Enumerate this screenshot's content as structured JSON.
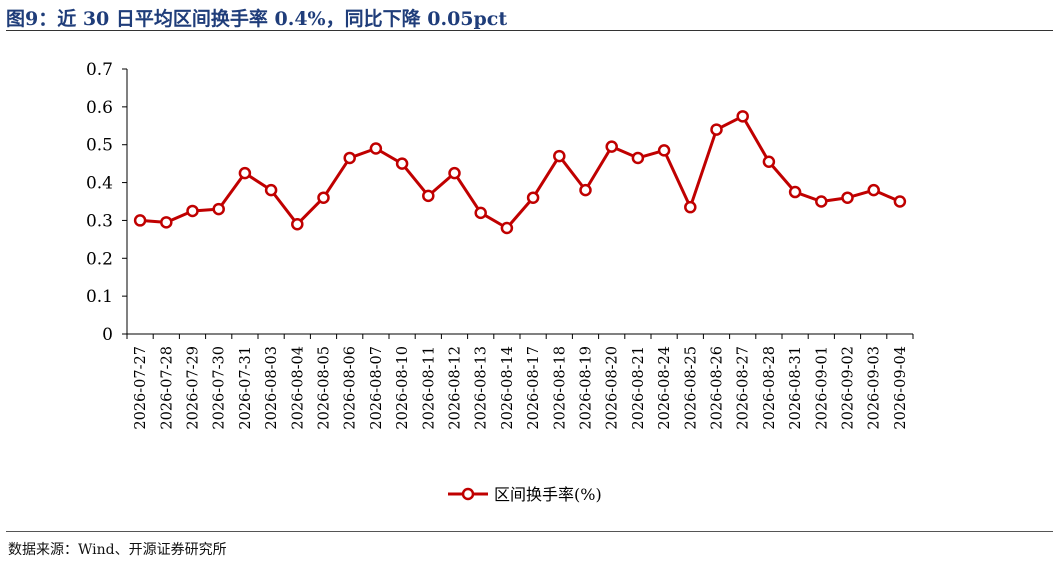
{
  "figure": {
    "title": "图9：近 30 日平均区间换手率 0.4%，同比下降 0.05pct",
    "source": "数据来源：Wind、开源证券研究所"
  },
  "colors": {
    "line": "#c00000",
    "title": "#1f3d7a",
    "axis": "#000000"
  },
  "chart_data": {
    "type": "line",
    "categories": [
      "2026-07-27",
      "2026-07-28",
      "2026-07-29",
      "2026-07-30",
      "2026-07-31",
      "2026-08-03",
      "2026-08-04",
      "2026-08-05",
      "2026-08-06",
      "2026-08-07",
      "2026-08-10",
      "2026-08-11",
      "2026-08-12",
      "2026-08-13",
      "2026-08-14",
      "2026-08-17",
      "2026-08-18",
      "2026-08-19",
      "2026-08-20",
      "2026-08-21",
      "2026-08-24",
      "2026-08-25",
      "2026-08-26",
      "2026-08-27",
      "2026-08-28",
      "2026-08-31",
      "2026-09-01",
      "2026-09-02",
      "2026-09-03",
      "2026-09-04"
    ],
    "series": [
      {
        "name": "区间换手率(%)",
        "values": [
          0.3,
          0.295,
          0.325,
          0.33,
          0.425,
          0.38,
          0.29,
          0.36,
          0.465,
          0.49,
          0.45,
          0.365,
          0.425,
          0.32,
          0.28,
          0.36,
          0.47,
          0.38,
          0.495,
          0.465,
          0.485,
          0.335,
          0.54,
          0.575,
          0.455,
          0.375,
          0.35,
          0.36,
          0.38,
          0.35
        ]
      }
    ],
    "ylim": [
      0,
      0.7
    ],
    "yticks": [
      "0",
      "0.1",
      "0.2",
      "0.3",
      "0.4",
      "0.5",
      "0.6",
      "0.7"
    ],
    "legend": "bottom-center",
    "grid": false
  }
}
